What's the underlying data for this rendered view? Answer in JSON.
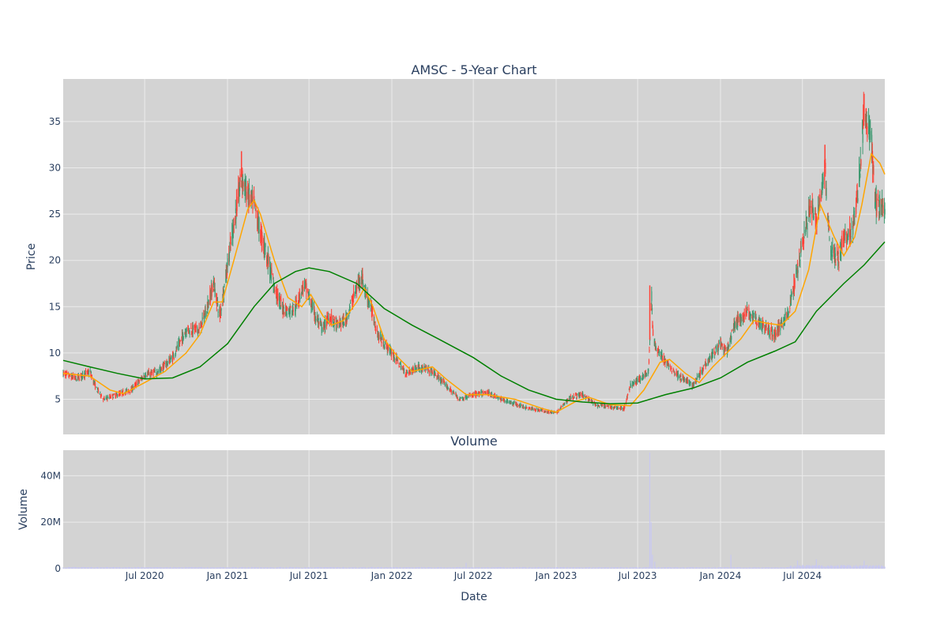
{
  "title": "AMSC - 5-Year Chart",
  "volume_title": "Volume",
  "colors": {
    "plot_bg": "#d3d3d3",
    "grid": "#ebebeb",
    "up": "#3d9970",
    "down": "#ff4136",
    "ma_short": "#ffa500",
    "ma_long": "#008000",
    "volume_bar": "#c8c8f0",
    "text": "#2a3f5f"
  },
  "chart_data": [
    {
      "type": "candlestick",
      "title": "AMSC - 5-Year Chart",
      "ylabel": "Price",
      "ylim": [
        1.2,
        39.6
      ],
      "yticks": [
        5,
        10,
        15,
        20,
        25,
        30,
        35
      ],
      "xlim": [
        "2020-01-02",
        "2024-12-31"
      ],
      "xticks": [
        {
          "date": "2020-07-01",
          "label": "Jul 2020"
        },
        {
          "date": "2021-01-01",
          "label": "Jan 2021"
        },
        {
          "date": "2021-07-01",
          "label": "Jul 2021"
        },
        {
          "date": "2022-01-01",
          "label": "Jan 2022"
        },
        {
          "date": "2022-07-01",
          "label": "Jul 2022"
        },
        {
          "date": "2023-01-01",
          "label": "Jan 2023"
        },
        {
          "date": "2023-07-01",
          "label": "Jul 2023"
        },
        {
          "date": "2024-01-01",
          "label": "Jan 2024"
        },
        {
          "date": "2024-07-01",
          "label": "Jul 2024"
        }
      ],
      "grid": true,
      "legend": "none",
      "price_path": [
        [
          "2020-01-02",
          7.8
        ],
        [
          "2020-02-01",
          7.2
        ],
        [
          "2020-03-01",
          8.0
        ],
        [
          "2020-03-15",
          6.2
        ],
        [
          "2020-04-01",
          5.0
        ],
        [
          "2020-05-01",
          5.5
        ],
        [
          "2020-06-01",
          6.0
        ],
        [
          "2020-07-01",
          7.6
        ],
        [
          "2020-08-01",
          8.0
        ],
        [
          "2020-09-01",
          9.5
        ],
        [
          "2020-10-01",
          12.5
        ],
        [
          "2020-11-01",
          12.5
        ],
        [
          "2020-11-20",
          15.5
        ],
        [
          "2020-12-01",
          17.5
        ],
        [
          "2020-12-15",
          14.0
        ],
        [
          "2021-01-01",
          19.5
        ],
        [
          "2021-01-15",
          24.0
        ],
        [
          "2021-02-01",
          29.0
        ],
        [
          "2021-02-15",
          27.0
        ],
        [
          "2021-03-01",
          26.0
        ],
        [
          "2021-03-15",
          23.0
        ],
        [
          "2021-04-01",
          20.0
        ],
        [
          "2021-04-15",
          17.0
        ],
        [
          "2021-05-01",
          15.0
        ],
        [
          "2021-05-15",
          14.5
        ],
        [
          "2021-06-01",
          15.0
        ],
        [
          "2021-06-20",
          17.5
        ],
        [
          "2021-07-01",
          16.0
        ],
        [
          "2021-07-15",
          14.0
        ],
        [
          "2021-08-01",
          12.5
        ],
        [
          "2021-08-15",
          14.0
        ],
        [
          "2021-09-01",
          13.0
        ],
        [
          "2021-09-20",
          13.5
        ],
        [
          "2021-10-15",
          17.0
        ],
        [
          "2021-10-25",
          18.5
        ],
        [
          "2021-11-01",
          17.0
        ],
        [
          "2021-11-15",
          15.0
        ],
        [
          "2021-12-01",
          12.0
        ],
        [
          "2021-12-15",
          11.0
        ],
        [
          "2022-01-01",
          10.0
        ],
        [
          "2022-02-01",
          7.8
        ],
        [
          "2022-03-01",
          8.5
        ],
        [
          "2022-04-01",
          8.0
        ],
        [
          "2022-05-01",
          6.5
        ],
        [
          "2022-06-01",
          5.0
        ],
        [
          "2022-07-01",
          5.5
        ],
        [
          "2022-08-01",
          5.7
        ],
        [
          "2022-09-01",
          5.0
        ],
        [
          "2022-10-01",
          4.5
        ],
        [
          "2022-11-01",
          4.0
        ],
        [
          "2022-12-01",
          3.8
        ],
        [
          "2023-01-01",
          3.5
        ],
        [
          "2023-02-01",
          5.2
        ],
        [
          "2023-03-01",
          5.5
        ],
        [
          "2023-04-01",
          4.3
        ],
        [
          "2023-05-01",
          4.2
        ],
        [
          "2023-06-01",
          4.0
        ],
        [
          "2023-06-15",
          6.5
        ],
        [
          "2023-07-01",
          7.0
        ],
        [
          "2023-07-25",
          8.0
        ],
        [
          "2023-08-01",
          16.0
        ],
        [
          "2023-08-05",
          11.0
        ],
        [
          "2023-09-01",
          9.0
        ],
        [
          "2023-10-01",
          7.5
        ],
        [
          "2023-11-01",
          6.5
        ],
        [
          "2023-12-01",
          9.0
        ],
        [
          "2024-01-01",
          11.0
        ],
        [
          "2024-01-15",
          10.0
        ],
        [
          "2024-02-01",
          13.0
        ],
        [
          "2024-03-01",
          14.5
        ],
        [
          "2024-04-01",
          13.0
        ],
        [
          "2024-05-01",
          12.0
        ],
        [
          "2024-06-01",
          14.5
        ],
        [
          "2024-07-01",
          22.0
        ],
        [
          "2024-07-20",
          26.0
        ],
        [
          "2024-08-01",
          24.0
        ],
        [
          "2024-08-20",
          30.0
        ],
        [
          "2024-09-01",
          21.0
        ],
        [
          "2024-09-20",
          20.0
        ],
        [
          "2024-10-01",
          22.5
        ],
        [
          "2024-10-20",
          23.5
        ],
        [
          "2024-11-01",
          27.0
        ],
        [
          "2024-11-15",
          36.0
        ],
        [
          "2024-12-01",
          33.0
        ],
        [
          "2024-12-10",
          26.0
        ],
        [
          "2024-12-31",
          25.5
        ]
      ],
      "spikes": [
        [
          "2021-02-01",
          31.8
        ],
        [
          "2023-07-28",
          17.3
        ],
        [
          "2024-08-20",
          32.5
        ],
        [
          "2024-11-15",
          38.0
        ]
      ],
      "series": [
        {
          "name": "MA20",
          "color": "#ffa500",
          "points": [
            [
              "2020-01-02",
              7.8
            ],
            [
              "2020-03-01",
              7.5
            ],
            [
              "2020-04-15",
              6.0
            ],
            [
              "2020-05-15",
              5.6
            ],
            [
              "2020-07-01",
              6.8
            ],
            [
              "2020-08-15",
              8.0
            ],
            [
              "2020-10-01",
              10.0
            ],
            [
              "2020-11-01",
              12.0
            ],
            [
              "2020-12-01",
              15.5
            ],
            [
              "2020-12-20",
              15.5
            ],
            [
              "2021-01-15",
              20.0
            ],
            [
              "2021-02-15",
              25.5
            ],
            [
              "2021-03-01",
              26.5
            ],
            [
              "2021-03-15",
              25.0
            ],
            [
              "2021-04-15",
              20.0
            ],
            [
              "2021-05-15",
              16.0
            ],
            [
              "2021-06-15",
              15.0
            ],
            [
              "2021-07-05",
              16.3
            ],
            [
              "2021-08-01",
              14.0
            ],
            [
              "2021-08-20",
              13.0
            ],
            [
              "2021-09-15",
              13.5
            ],
            [
              "2021-10-15",
              15.5
            ],
            [
              "2021-11-01",
              17.0
            ],
            [
              "2021-11-20",
              15.0
            ],
            [
              "2021-12-15",
              11.5
            ],
            [
              "2022-01-15",
              9.5
            ],
            [
              "2022-02-15",
              8.0
            ],
            [
              "2022-04-01",
              8.5
            ],
            [
              "2022-05-01",
              7.2
            ],
            [
              "2022-06-15",
              5.5
            ],
            [
              "2022-08-01",
              5.5
            ],
            [
              "2022-10-01",
              5.0
            ],
            [
              "2022-12-01",
              4.0
            ],
            [
              "2023-01-01",
              3.6
            ],
            [
              "2023-02-15",
              4.8
            ],
            [
              "2023-03-15",
              5.2
            ],
            [
              "2023-05-01",
              4.4
            ],
            [
              "2023-06-15",
              4.3
            ],
            [
              "2023-07-15",
              6.0
            ],
            [
              "2023-08-20",
              9.0
            ],
            [
              "2023-09-10",
              9.3
            ],
            [
              "2023-10-15",
              7.8
            ],
            [
              "2023-11-15",
              6.8
            ],
            [
              "2023-12-15",
              8.5
            ],
            [
              "2024-01-15",
              10.0
            ],
            [
              "2024-02-15",
              11.5
            ],
            [
              "2024-03-15",
              13.5
            ],
            [
              "2024-04-15",
              13.2
            ],
            [
              "2024-05-15",
              13.0
            ],
            [
              "2024-06-15",
              14.5
            ],
            [
              "2024-07-15",
              19.0
            ],
            [
              "2024-08-10",
              26.0
            ],
            [
              "2024-09-10",
              22.5
            ],
            [
              "2024-10-01",
              20.5
            ],
            [
              "2024-10-25",
              22.5
            ],
            [
              "2024-11-10",
              26.0
            ],
            [
              "2024-12-01",
              31.5
            ],
            [
              "2024-12-20",
              30.5
            ],
            [
              "2024-12-31",
              29.3
            ]
          ]
        },
        {
          "name": "MA200",
          "color": "#008000",
          "points": [
            [
              "2020-01-02",
              9.2
            ],
            [
              "2020-03-01",
              8.5
            ],
            [
              "2020-05-01",
              7.8
            ],
            [
              "2020-07-01",
              7.2
            ],
            [
              "2020-09-01",
              7.3
            ],
            [
              "2020-11-01",
              8.5
            ],
            [
              "2021-01-01",
              11.0
            ],
            [
              "2021-03-01",
              15.0
            ],
            [
              "2021-04-15",
              17.5
            ],
            [
              "2021-06-01",
              18.8
            ],
            [
              "2021-07-01",
              19.2
            ],
            [
              "2021-08-15",
              18.8
            ],
            [
              "2021-10-15",
              17.5
            ],
            [
              "2021-12-15",
              14.8
            ],
            [
              "2022-02-15",
              13.0
            ],
            [
              "2022-04-15",
              11.5
            ],
            [
              "2022-07-01",
              9.5
            ],
            [
              "2022-09-01",
              7.5
            ],
            [
              "2022-11-01",
              6.0
            ],
            [
              "2023-01-01",
              5.0
            ],
            [
              "2023-03-01",
              4.7
            ],
            [
              "2023-05-01",
              4.5
            ],
            [
              "2023-07-01",
              4.6
            ],
            [
              "2023-09-01",
              5.5
            ],
            [
              "2023-11-01",
              6.2
            ],
            [
              "2024-01-01",
              7.3
            ],
            [
              "2024-03-01",
              9.0
            ],
            [
              "2024-05-01",
              10.2
            ],
            [
              "2024-06-15",
              11.2
            ],
            [
              "2024-08-01",
              14.5
            ],
            [
              "2024-10-01",
              17.5
            ],
            [
              "2024-11-15",
              19.5
            ],
            [
              "2024-12-31",
              22.0
            ]
          ]
        }
      ]
    },
    {
      "type": "bar",
      "title": "Volume",
      "ylabel": "Volume",
      "xlabel": "Date",
      "ylim": [
        0,
        51000000
      ],
      "yticks": [
        {
          "value": 0,
          "label": "0"
        },
        {
          "value": 20000000,
          "label": "20M"
        },
        {
          "value": 40000000,
          "label": "40M"
        }
      ],
      "baseline": 500000,
      "peaks": [
        [
          "2021-06-20",
          5000000
        ],
        [
          "2022-06-15",
          2500000
        ],
        [
          "2023-07-28",
          50000000
        ],
        [
          "2023-07-31",
          20000000
        ],
        [
          "2023-08-03",
          6000000
        ],
        [
          "2023-08-08",
          3000000
        ],
        [
          "2024-01-20",
          12000000
        ],
        [
          "2024-01-24",
          6000000
        ],
        [
          "2024-06-20",
          3500000
        ],
        [
          "2024-08-01",
          4000000
        ],
        [
          "2024-11-15",
          3500000
        ],
        [
          "2024-12-01",
          2800000
        ]
      ]
    }
  ]
}
